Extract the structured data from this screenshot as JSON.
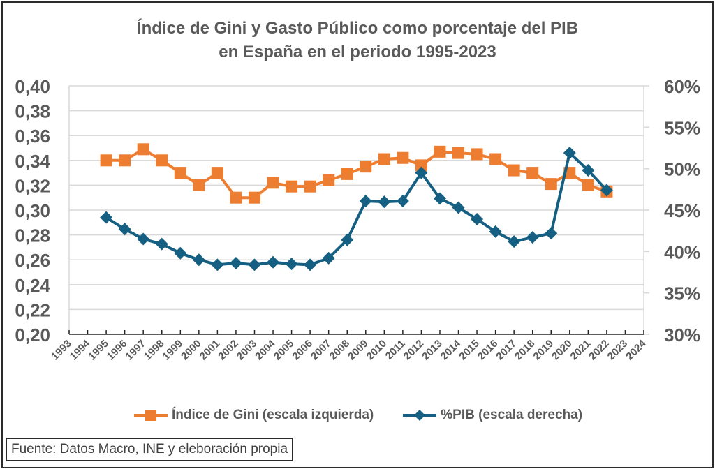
{
  "chart_data": {
    "type": "line",
    "title": "Índice de Gini y Gasto Público como porcentaje del PIB en España en el periodo 1995-2023",
    "title_lines": [
      "Índice de Gini y Gasto Público como porcentaje del PIB",
      "en España en el periodo 1995-2023"
    ],
    "xlabel": "",
    "ylabel_left": "",
    "ylabel_right": "",
    "categories": [
      "1993",
      "1994",
      "1995",
      "1996",
      "1997",
      "1998",
      "1999",
      "2000",
      "2001",
      "2002",
      "2003",
      "2004",
      "2005",
      "2006",
      "2007",
      "2008",
      "2009",
      "2010",
      "2011",
      "2012",
      "2013",
      "2014",
      "2015",
      "2016",
      "2017",
      "2018",
      "2019",
      "2020",
      "2021",
      "2022",
      "2023",
      "2024"
    ],
    "ylim_left": [
      0.2,
      0.4
    ],
    "yticks_left": [
      "0,20",
      "0,22",
      "0,24",
      "0,26",
      "0,28",
      "0,30",
      "0,32",
      "0,34",
      "0,36",
      "0,38",
      "0,40"
    ],
    "ylim_right": [
      0.3,
      0.6
    ],
    "yticks_right": [
      "30%",
      "35%",
      "40%",
      "45%",
      "50%",
      "55%",
      "60%"
    ],
    "grid": true,
    "legend_position": "bottom",
    "series": [
      {
        "name": "Índice de Gini (escala izquierda)",
        "axis": "left",
        "color": "#ED7D31",
        "marker": "square",
        "x": [
          "1995",
          "1996",
          "1997",
          "1998",
          "1999",
          "2000",
          "2001",
          "2002",
          "2003",
          "2004",
          "2005",
          "2006",
          "2007",
          "2008",
          "2009",
          "2010",
          "2011",
          "2012",
          "2013",
          "2014",
          "2015",
          "2016",
          "2017",
          "2018",
          "2019",
          "2020",
          "2021",
          "2022"
        ],
        "values": [
          0.34,
          0.34,
          0.349,
          0.34,
          0.33,
          0.32,
          0.33,
          0.31,
          0.31,
          0.322,
          0.319,
          0.319,
          0.324,
          0.329,
          0.335,
          0.341,
          0.342,
          0.336,
          0.347,
          0.346,
          0.345,
          0.341,
          0.332,
          0.33,
          0.321,
          0.33,
          0.32,
          0.315
        ]
      },
      {
        "name": "%PIB (escala derecha)",
        "axis": "right",
        "color": "#156082",
        "marker": "diamond",
        "x": [
          "1995",
          "1996",
          "1997",
          "1998",
          "1999",
          "2000",
          "2001",
          "2002",
          "2003",
          "2004",
          "2005",
          "2006",
          "2007",
          "2008",
          "2009",
          "2010",
          "2011",
          "2012",
          "2013",
          "2014",
          "2015",
          "2016",
          "2017",
          "2018",
          "2019",
          "2020",
          "2021",
          "2022"
        ],
        "values": [
          0.441,
          0.427,
          0.415,
          0.409,
          0.398,
          0.39,
          0.384,
          0.386,
          0.384,
          0.387,
          0.385,
          0.384,
          0.392,
          0.414,
          0.461,
          0.46,
          0.461,
          0.495,
          0.464,
          0.453,
          0.439,
          0.424,
          0.412,
          0.417,
          0.422,
          0.519,
          0.498,
          0.474
        ]
      }
    ]
  },
  "legend": {
    "gini_label": "Índice de Gini (escala izquierda)",
    "pib_label": "%PIB (escala derecha)"
  },
  "source_note": "Fuente: Datos Macro, INE y eleboración propia"
}
